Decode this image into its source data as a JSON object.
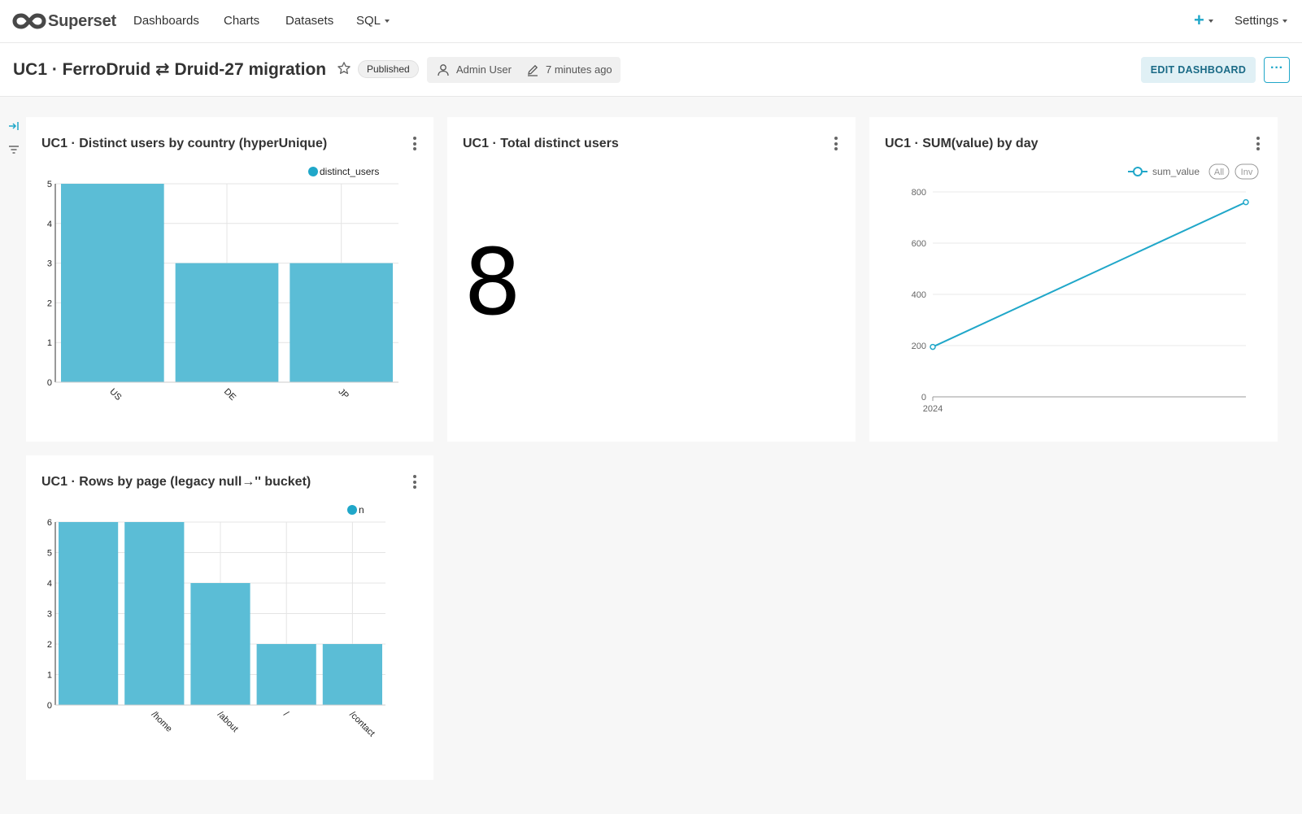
{
  "app": {
    "name": "Superset"
  },
  "nav": {
    "links": [
      "Dashboards",
      "Charts",
      "Datasets",
      "SQL"
    ],
    "settings": "Settings"
  },
  "header": {
    "title": "UC1 · FerroDruid ⇄ Druid-27 migration",
    "status": "Published",
    "owner": "Admin User",
    "modified": "7 minutes ago",
    "edit_label": "EDIT DASHBOARD"
  },
  "colors": {
    "accent": "#20a7c9",
    "bar": "#5bbdd6"
  },
  "charts": {
    "country": {
      "title": "UC1 · Distinct users by country (hyperUnique)"
    },
    "total": {
      "title": "UC1 · Total distinct users",
      "value": "8"
    },
    "sum": {
      "title": "UC1 · SUM(value) by day",
      "legend_all": "All",
      "legend_inv": "Inv"
    },
    "rows": {
      "title": "UC1 · Rows by page (legacy null→'' bucket)"
    }
  },
  "chart_data": [
    {
      "type": "bar",
      "title": "UC1 · Distinct users by country (hyperUnique)",
      "categories": [
        "US",
        "DE",
        "JP"
      ],
      "series": [
        {
          "name": "distinct_users",
          "values": [
            5,
            3,
            3
          ]
        }
      ],
      "ylim": [
        0,
        5
      ],
      "yticks": [
        0,
        1,
        2,
        3,
        4,
        5
      ],
      "legend": "top-right",
      "grid": true
    },
    {
      "type": "line",
      "title": "UC1 · SUM(value) by day",
      "x": [
        "2024",
        ""
      ],
      "series": [
        {
          "name": "sum_value",
          "values": [
            195,
            760
          ]
        }
      ],
      "ylim": [
        0,
        800
      ],
      "yticks": [
        0,
        200,
        400,
        600,
        800
      ],
      "xticks": [
        "2024"
      ],
      "legend": "top-right",
      "grid": true
    },
    {
      "type": "bar",
      "title": "UC1 · Rows by page (legacy null→'' bucket)",
      "categories": [
        "",
        "/home",
        "/about",
        "/",
        "/contact"
      ],
      "series": [
        {
          "name": "n",
          "values": [
            6,
            6,
            4,
            2,
            2
          ]
        }
      ],
      "ylim": [
        0,
        6
      ],
      "yticks": [
        0,
        1,
        2,
        3,
        4,
        5,
        6
      ],
      "legend": "top-right",
      "grid": true
    }
  ]
}
